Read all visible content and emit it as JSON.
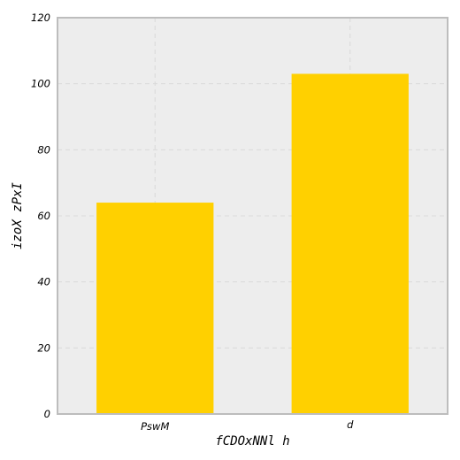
{
  "chart_data": {
    "type": "bar",
    "title": "",
    "xlabel": "fCDOxNNl h",
    "ylabel": "izoX zPxI",
    "categories": [
      "PswM",
      "d"
    ],
    "series": [
      {
        "values": [
          64,
          103
        ]
      }
    ],
    "ylim": [
      0,
      120
    ],
    "yticks": [
      0,
      20,
      40,
      60,
      80,
      100,
      120
    ],
    "grid": true,
    "legend": "none",
    "colors": {
      "bar": "#FFD000",
      "plot_background": "#EDEDED",
      "frame": "#BDBDBD",
      "grid": "#DADADA"
    }
  }
}
